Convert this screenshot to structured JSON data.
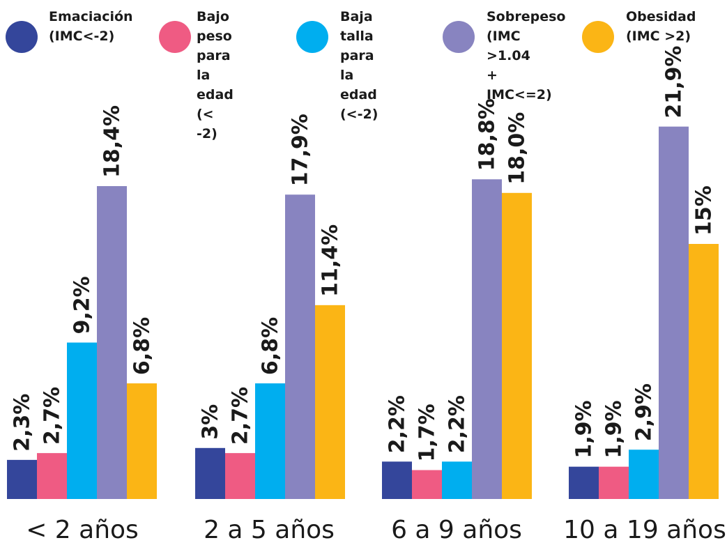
{
  "chart_data": {
    "type": "bar",
    "categories": [
      "< 2 años",
      "2 a 5 años",
      "6 a 9 años",
      "10 a 19 años"
    ],
    "series": [
      {
        "name": "Emaciación\n(IMC<-2)",
        "color": "#34469b",
        "values": [
          2.3,
          3,
          2.2,
          1.9
        ],
        "labels": [
          "2,3%",
          "3%",
          "2,2%",
          "1,9%"
        ]
      },
      {
        "name": "Bajo peso\npara la edad\n(< -2)",
        "color": "#ef5b83",
        "values": [
          2.7,
          2.7,
          1.7,
          1.9
        ],
        "labels": [
          "2,7%",
          "2,7%",
          "1,7%",
          "1,9%"
        ]
      },
      {
        "name": "Baja talla\npara la edad\n(<-2)",
        "color": "#00aeef",
        "values": [
          9.2,
          6.8,
          2.2,
          2.9
        ],
        "labels": [
          "9,2%",
          "6,8%",
          "2,2%",
          "2,9%"
        ]
      },
      {
        "name": "Sobrepeso\n(IMC >1.04\n+ IMC<=2)",
        "color": "#8884c0",
        "values": [
          18.4,
          17.9,
          18.8,
          21.9
        ],
        "labels": [
          "18,4%",
          "17,9%",
          "18,8%",
          "21,9%"
        ]
      },
      {
        "name": "Obesidad\n(IMC >2)",
        "color": "#fbb515",
        "values": [
          6.8,
          11.4,
          18.0,
          15
        ],
        "labels": [
          "6,8%",
          "11,4%",
          "18,0%",
          "15%"
        ]
      }
    ],
    "legend_position": "top",
    "grid": false
  }
}
